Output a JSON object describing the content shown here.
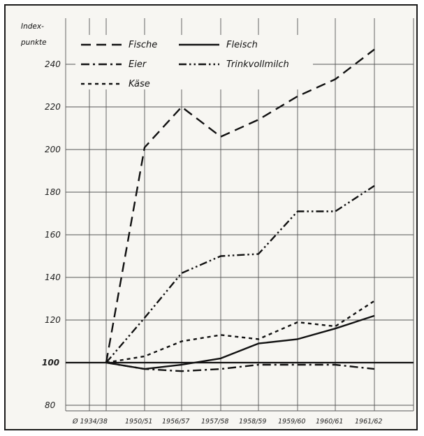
{
  "chart_data": {
    "type": "line",
    "ylabel_lines": [
      "Index-",
      "punkte"
    ],
    "ylim": [
      80,
      250
    ],
    "yticks": [
      {
        "value": 80,
        "label": "80"
      },
      {
        "value": 100,
        "label": "100"
      },
      {
        "value": 120,
        "label": "120"
      },
      {
        "value": 140,
        "label": "140"
      },
      {
        "value": 160,
        "label": "160"
      },
      {
        "value": 180,
        "label": "180"
      },
      {
        "value": 200,
        "label": "200"
      },
      {
        "value": 220,
        "label": "220"
      },
      {
        "value": 240,
        "label": "240"
      }
    ],
    "categories": [
      "Ø 1934/38",
      "1950/51",
      "1956/57",
      "1957/58",
      "1958/59",
      "1959/60",
      "1960/61",
      "1961/62"
    ],
    "grid": true,
    "legend_position": "top-left",
    "series": [
      {
        "name": "Fische",
        "dash": "long-dash",
        "values": [
          100,
          201,
          220,
          206,
          214,
          225,
          233,
          247
        ]
      },
      {
        "name": "Fleisch",
        "dash": "solid",
        "values": [
          100,
          97,
          99,
          102,
          109,
          111,
          116,
          122
        ]
      },
      {
        "name": "Eier",
        "dash": "dash-dot",
        "values": [
          100,
          97,
          96,
          97,
          99,
          99,
          99,
          97
        ]
      },
      {
        "name": "Trinkvollmilch",
        "dash": "dash-dot-dot",
        "values": [
          100,
          121,
          142,
          150,
          151,
          171,
          171,
          183
        ]
      },
      {
        "name": "Käse",
        "dash": "short-dash",
        "values": [
          100,
          103,
          110,
          113,
          111,
          119,
          117,
          129
        ]
      }
    ]
  }
}
